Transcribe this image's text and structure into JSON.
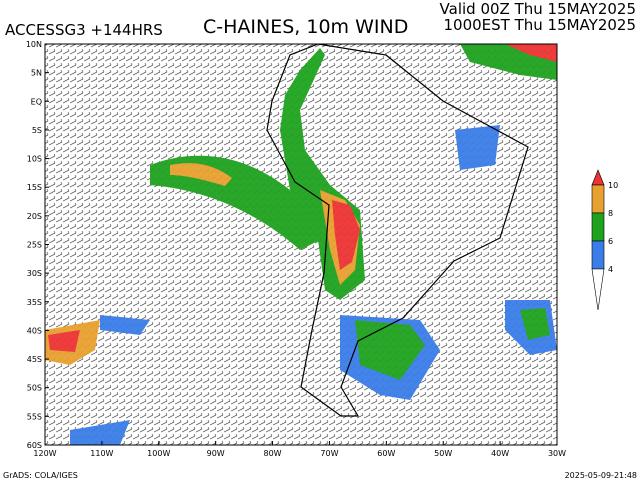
{
  "header": {
    "model": "ACCESSG3 +144HRS",
    "title": "C-HAINES, 10m WIND",
    "valid_utc": "Valid 00Z Thu 15MAY2025",
    "valid_local": "1000EST Thu 15MAY2025"
  },
  "axes": {
    "lat_labels": [
      "10N",
      "5N",
      "EQ",
      "5S",
      "10S",
      "15S",
      "20S",
      "25S",
      "30S",
      "35S",
      "40S",
      "45S",
      "50S",
      "55S",
      "60S"
    ],
    "lon_labels": [
      "120W",
      "110W",
      "100W",
      "90W",
      "80W",
      "70W",
      "60W",
      "50W",
      "40W",
      "30W"
    ]
  },
  "colorbar": {
    "labels": [
      "4",
      "6",
      "8",
      "10"
    ]
  },
  "footer": {
    "credit": "GrADS: COLA/IGES",
    "timestamp": "2025-05-09-21:48"
  }
}
